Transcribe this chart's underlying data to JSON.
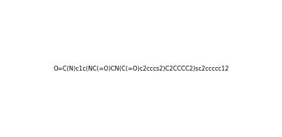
{
  "smiles": "O=C(N)c1c(NC(=O)CN(C(=O)c2cccs2)C2CCCC2)sc2ccccc12",
  "title": "",
  "bg_color": "#ffffff",
  "line_color": "#000000",
  "figsize": [
    4.04,
    1.96
  ],
  "dpi": 100
}
